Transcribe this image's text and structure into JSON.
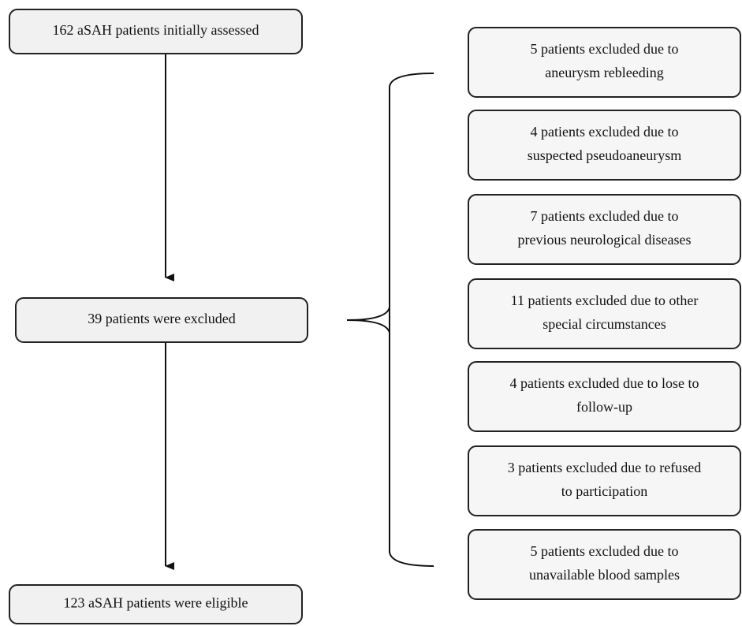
{
  "nodes": [
    {
      "lines": [
        "162 aSAH patients initially assessed"
      ]
    },
    {
      "lines": [
        "39 patients were excluded"
      ]
    },
    {
      "lines": [
        "123 aSAH patients were eligible"
      ]
    }
  ],
  "exclusions": [
    {
      "lines": [
        "5 patients excluded due to",
        "aneurysm rebleeding"
      ]
    },
    {
      "lines": [
        "4 patients excluded due to",
        "suspected pseudoaneurysm"
      ]
    },
    {
      "lines": [
        "7 patients excluded due to",
        "previous neurological diseases"
      ]
    },
    {
      "lines": [
        "11 patients excluded due to other",
        "special circumstances"
      ]
    },
    {
      "lines": [
        "4 patients excluded due to lose to",
        "follow-up"
      ]
    },
    {
      "lines": [
        "3 patients excluded due to refused",
        "to participation"
      ]
    },
    {
      "lines": [
        "5 patients excluded due to",
        "unavailable blood samples"
      ]
    }
  ]
}
